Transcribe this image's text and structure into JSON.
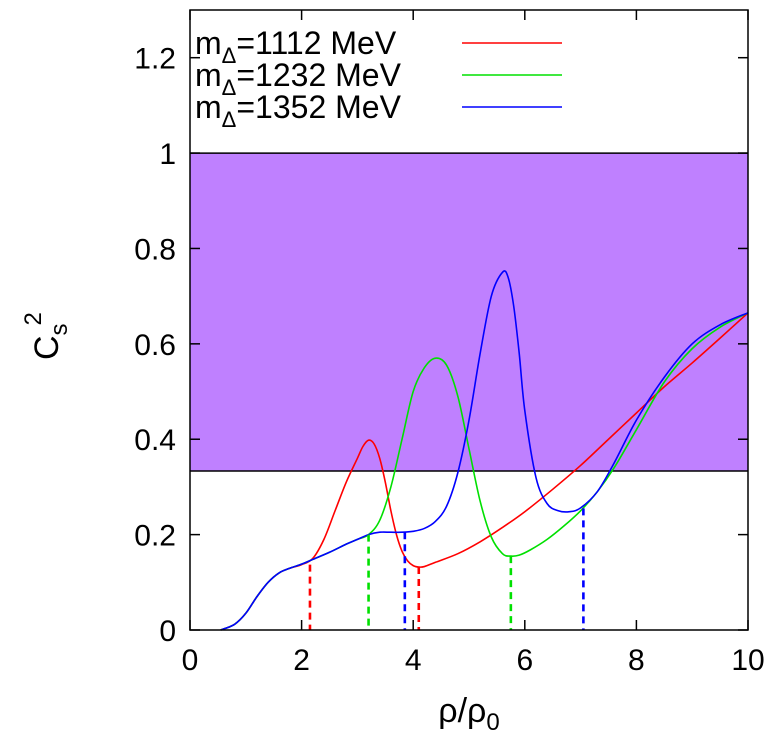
{
  "chart_data": {
    "type": "line",
    "xlabel": {
      "main": "ρ/ρ",
      "sub": "0"
    },
    "ylabel": {
      "main": "C",
      "sub": "s",
      "sup": "2"
    },
    "xlim": [
      0,
      10
    ],
    "ylim": [
      0,
      1.3
    ],
    "xticks": [
      0,
      2,
      4,
      6,
      8,
      10
    ],
    "yticks": [
      0,
      0.2,
      0.4,
      0.6,
      0.8,
      1,
      1.2
    ],
    "ytick_labels": [
      "0",
      "0.2",
      "0.4",
      "0.6",
      "0.8",
      "1",
      "1.2"
    ],
    "grid": false,
    "legend": "top-left",
    "band": {
      "y0": 0.3333,
      "y1": 1.0,
      "color": "#bf80ff",
      "edge": "#000000"
    },
    "series": [
      {
        "label": {
          "pre": "m",
          "sub": "Δ",
          "post": "=1112 MeV"
        },
        "color": "#ff0000",
        "x": [
          0.55,
          0.8,
          1.0,
          1.2,
          1.4,
          1.6,
          1.8,
          2.0,
          2.2,
          2.4,
          2.6,
          2.8,
          3.0,
          3.1,
          3.2,
          3.3,
          3.4,
          3.5,
          3.6,
          3.7,
          3.8,
          3.9,
          4.0,
          4.1,
          4.2,
          4.4,
          4.8,
          5.2,
          5.6,
          6.0,
          6.5,
          7.0,
          7.5,
          8.0,
          8.5,
          9.0,
          9.5,
          10.0
        ],
        "y": [
          0.0,
          0.012,
          0.035,
          0.07,
          0.1,
          0.12,
          0.13,
          0.137,
          0.15,
          0.19,
          0.25,
          0.31,
          0.36,
          0.385,
          0.398,
          0.39,
          0.36,
          0.31,
          0.25,
          0.2,
          0.165,
          0.145,
          0.135,
          0.132,
          0.133,
          0.142,
          0.16,
          0.185,
          0.215,
          0.248,
          0.295,
          0.345,
          0.4,
          0.455,
          0.51,
          0.56,
          0.612,
          0.665
        ]
      },
      {
        "label": {
          "pre": "m",
          "sub": "Δ",
          "post": "=1232 MeV"
        },
        "color": "#00e000",
        "x": [
          0.55,
          0.8,
          1.0,
          1.2,
          1.4,
          1.6,
          1.8,
          2.0,
          2.2,
          2.5,
          2.8,
          3.0,
          3.2,
          3.4,
          3.6,
          3.8,
          4.0,
          4.2,
          4.4,
          4.6,
          4.8,
          5.0,
          5.2,
          5.4,
          5.6,
          5.75,
          5.9,
          6.1,
          6.4,
          6.7,
          7.0,
          7.3,
          7.6,
          8.0,
          8.5,
          9.0,
          9.5,
          10.0
        ],
        "y": [
          0.0,
          0.012,
          0.035,
          0.07,
          0.1,
          0.12,
          0.13,
          0.138,
          0.148,
          0.163,
          0.18,
          0.19,
          0.2,
          0.23,
          0.3,
          0.4,
          0.5,
          0.55,
          0.57,
          0.555,
          0.49,
          0.38,
          0.27,
          0.195,
          0.16,
          0.155,
          0.157,
          0.168,
          0.19,
          0.218,
          0.25,
          0.29,
          0.34,
          0.42,
          0.52,
          0.59,
          0.635,
          0.665
        ]
      },
      {
        "label": {
          "pre": "m",
          "sub": "Δ",
          "post": "=1352 MeV"
        },
        "color": "#0000ff",
        "x": [
          0.55,
          0.8,
          1.0,
          1.2,
          1.4,
          1.6,
          1.8,
          2.0,
          2.2,
          2.5,
          2.8,
          3.0,
          3.2,
          3.4,
          3.6,
          3.8,
          4.0,
          4.2,
          4.4,
          4.6,
          4.8,
          5.0,
          5.2,
          5.4,
          5.6,
          5.7,
          5.8,
          5.9,
          6.0,
          6.2,
          6.4,
          6.6,
          6.8,
          7.0,
          7.3,
          7.6,
          8.0,
          8.5,
          9.0,
          9.5,
          10.0
        ],
        "y": [
          0.0,
          0.012,
          0.035,
          0.07,
          0.1,
          0.12,
          0.13,
          0.138,
          0.148,
          0.163,
          0.18,
          0.19,
          0.2,
          0.205,
          0.205,
          0.205,
          0.207,
          0.213,
          0.228,
          0.26,
          0.33,
          0.44,
          0.58,
          0.7,
          0.75,
          0.74,
          0.68,
          0.58,
          0.46,
          0.32,
          0.265,
          0.25,
          0.248,
          0.256,
          0.29,
          0.35,
          0.44,
          0.53,
          0.6,
          0.64,
          0.665
        ]
      }
    ],
    "markers": [
      {
        "x": 2.15,
        "y": 0.137,
        "color": "#ff0000"
      },
      {
        "x": 3.2,
        "y": 0.2,
        "color": "#00e000"
      },
      {
        "x": 3.85,
        "y": 0.205,
        "color": "#0000ff"
      },
      {
        "x": 4.1,
        "y": 0.132,
        "color": "#ff0000"
      },
      {
        "x": 5.75,
        "y": 0.155,
        "color": "#00e000"
      },
      {
        "x": 7.05,
        "y": 0.255,
        "color": "#0000ff"
      }
    ]
  }
}
